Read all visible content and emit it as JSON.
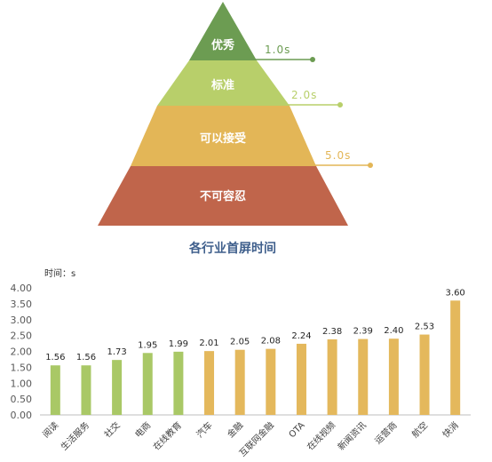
{
  "pyramid": {
    "levels": [
      {
        "label": "优秀",
        "color": "#6c9c52",
        "threshold": "1.0s"
      },
      {
        "label": "标准",
        "color": "#b8cf6a",
        "threshold": "2.0s"
      },
      {
        "label": "可以接受",
        "color": "#e3b657",
        "threshold": "5.0s"
      },
      {
        "label": "不可容忍",
        "color": "#c0654b",
        "threshold": ""
      }
    ]
  },
  "chart_data": {
    "type": "bar",
    "title": "各行业首屏时间",
    "ylabel": "时间：s",
    "xlabel": "",
    "ylim": [
      0,
      4
    ],
    "yticks": [
      "0.00",
      "0.50",
      "1.00",
      "1.50",
      "2.00",
      "2.50",
      "3.00",
      "3.50",
      "4.00"
    ],
    "grid": false,
    "categories": [
      "阅读",
      "生活服务",
      "社交",
      "电商",
      "在线教育",
      "汽车",
      "金融",
      "互联网金融",
      "OTA",
      "在线视频",
      "新闻资讯",
      "运营商",
      "航空",
      "快消"
    ],
    "values": [
      1.56,
      1.56,
      1.73,
      1.95,
      1.99,
      2.01,
      2.05,
      2.08,
      2.24,
      2.38,
      2.39,
      2.4,
      2.53,
      3.6
    ],
    "value_labels": [
      "1.56",
      "1.56",
      "1.73",
      "1.95",
      "1.99",
      "2.01",
      "2.05",
      "2.08",
      "2.24",
      "2.38",
      "2.39",
      "2.40",
      "2.53",
      "3.60"
    ],
    "colors": {
      "green": "#a9c866",
      "gold": "#e4b85c"
    }
  }
}
